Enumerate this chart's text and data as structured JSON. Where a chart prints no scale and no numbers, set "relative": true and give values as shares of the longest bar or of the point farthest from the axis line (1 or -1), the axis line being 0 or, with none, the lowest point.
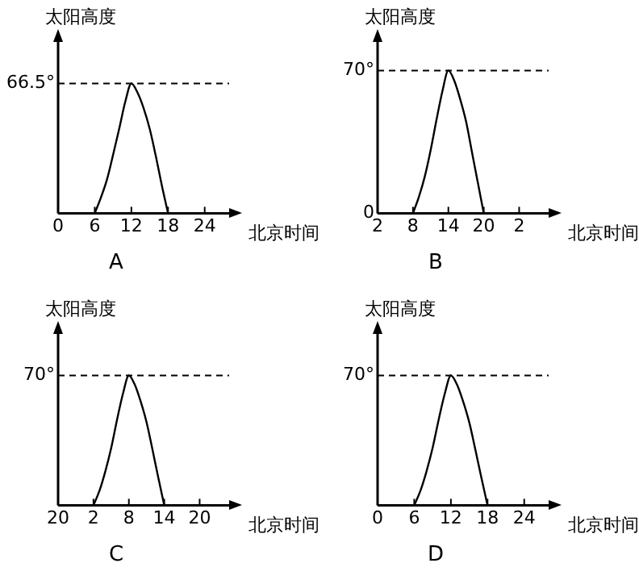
{
  "chart_data": [
    {
      "type": "line",
      "title": "A",
      "xlabel": "北京时间",
      "ylabel": "太阳高度",
      "relative": true,
      "grid": false,
      "legend": false,
      "marker": "none",
      "line_style": "solid",
      "categories": [
        "0",
        null,
        null,
        null,
        null,
        null,
        "6",
        null,
        null,
        null,
        null,
        null,
        "12",
        null,
        null,
        null,
        null,
        null,
        "18",
        null,
        null,
        null,
        null,
        null,
        "24",
        null,
        null,
        null,
        null
      ],
      "annotations": [
        "66.5°"
      ],
      "ref_lines": [
        {
          "axis": "y",
          "value": 1,
          "label": null,
          "line_style": "dashed",
          "color": "#000000"
        }
      ],
      "series": [
        {
          "color": "#000000",
          "values": [
            null,
            null,
            null,
            null,
            null,
            null,
            0,
            0.12,
            0.26,
            0.45,
            0.65,
            0.86,
            1,
            0.93,
            0.81,
            0.65,
            0.44,
            0.21,
            0,
            null,
            null,
            null,
            null,
            null,
            null,
            null,
            null,
            null,
            null
          ]
        }
      ]
    },
    {
      "type": "line",
      "title": "B",
      "xlabel": "北京时间",
      "ylabel": "太阳高度",
      "ylim": [
        0,
        84
      ],
      "yticks": [
        0,
        {
          "value": 70,
          "label": "70°"
        }
      ],
      "grid": false,
      "legend": false,
      "marker": "none",
      "line_style": "solid",
      "categories": [
        "2",
        null,
        null,
        null,
        null,
        null,
        "8",
        null,
        null,
        null,
        null,
        null,
        "14",
        null,
        null,
        null,
        null,
        null,
        "20",
        null,
        null,
        null,
        null,
        null,
        "2",
        null,
        null,
        null,
        null,
        null
      ],
      "ref_lines": [
        {
          "axis": "y",
          "value": 70,
          "label": null,
          "line_style": "dashed",
          "color": "#000000"
        }
      ],
      "series": [
        {
          "color": "#000000",
          "values": [
            null,
            null,
            null,
            null,
            null,
            null,
            0,
            8,
            18,
            31,
            46,
            60,
            70,
            65,
            56,
            45,
            30,
            15,
            0,
            null,
            null,
            null,
            null,
            null,
            null,
            null,
            null,
            null,
            null,
            null
          ]
        }
      ]
    },
    {
      "type": "line",
      "title": "C",
      "xlabel": "北京时间",
      "ylabel": "太阳高度",
      "relative": true,
      "grid": false,
      "legend": false,
      "marker": "none",
      "line_style": "solid",
      "categories": [
        "20",
        null,
        null,
        null,
        null,
        null,
        "2",
        null,
        null,
        null,
        null,
        null,
        "8",
        null,
        null,
        null,
        null,
        null,
        "14",
        null,
        null,
        null,
        null,
        null,
        "20",
        null,
        null,
        null,
        null,
        null
      ],
      "annotations": [
        "70°"
      ],
      "ref_lines": [
        {
          "axis": "y",
          "value": 1,
          "label": null,
          "line_style": "dashed",
          "color": "#000000"
        }
      ],
      "series": [
        {
          "color": "#000000",
          "values": [
            null,
            null,
            null,
            null,
            null,
            null,
            0,
            0.11,
            0.26,
            0.44,
            0.66,
            0.86,
            1,
            0.93,
            0.8,
            0.64,
            0.43,
            0.21,
            0,
            null,
            null,
            null,
            null,
            null,
            null,
            null,
            null,
            null,
            null,
            null
          ]
        }
      ]
    },
    {
      "type": "line",
      "title": "D",
      "xlabel": "北京时间",
      "ylabel": "太阳高度",
      "relative": true,
      "grid": false,
      "legend": false,
      "marker": "none",
      "line_style": "solid",
      "categories": [
        "0",
        null,
        null,
        null,
        null,
        null,
        "6",
        null,
        null,
        null,
        null,
        null,
        "12",
        null,
        null,
        null,
        null,
        null,
        "18",
        null,
        null,
        null,
        null,
        null,
        "24",
        null,
        null,
        null,
        null
      ],
      "annotations": [
        "70°"
      ],
      "ref_lines": [
        {
          "axis": "y",
          "value": 1,
          "label": null,
          "line_style": "dashed",
          "color": "#000000"
        }
      ],
      "series": [
        {
          "color": "#000000",
          "values": [
            null,
            null,
            null,
            null,
            null,
            null,
            0,
            0.11,
            0.26,
            0.44,
            0.66,
            0.86,
            1,
            0.93,
            0.8,
            0.64,
            0.43,
            0.21,
            0,
            null,
            null,
            null,
            null,
            null,
            null,
            null,
            null,
            null,
            null
          ]
        }
      ]
    }
  ]
}
